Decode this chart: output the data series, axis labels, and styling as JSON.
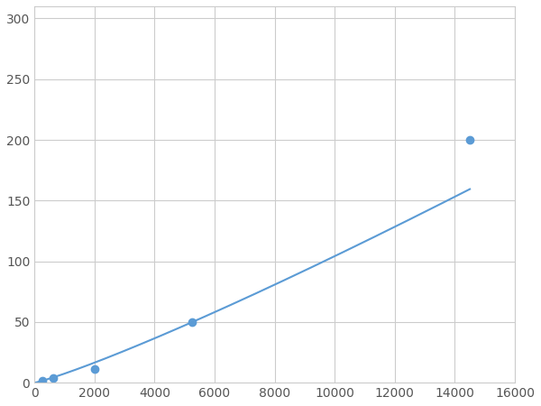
{
  "x": [
    250,
    625,
    2000,
    5250,
    14500
  ],
  "y": [
    2,
    4,
    11,
    50,
    200
  ],
  "line_color": "#5B9BD5",
  "marker_color": "#5B9BD5",
  "marker_size": 6,
  "marker_style": "o",
  "line_width": 1.5,
  "xlim": [
    0,
    16000
  ],
  "ylim": [
    0,
    310
  ],
  "xticks": [
    0,
    2000,
    4000,
    6000,
    8000,
    10000,
    12000,
    14000,
    16000
  ],
  "yticks": [
    0,
    50,
    100,
    150,
    200,
    250,
    300
  ],
  "grid_color": "#CCCCCC",
  "background_color": "#FFFFFF",
  "fig_background": "#FFFFFF",
  "tick_label_color": "#555555",
  "tick_label_size": 10
}
